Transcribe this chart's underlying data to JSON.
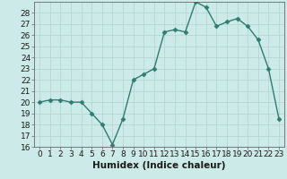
{
  "x": [
    0,
    1,
    2,
    3,
    4,
    5,
    6,
    7,
    8,
    9,
    10,
    11,
    12,
    13,
    14,
    15,
    16,
    17,
    18,
    19,
    20,
    21,
    22,
    23
  ],
  "y": [
    20,
    20.2,
    20.2,
    20,
    20,
    19,
    18,
    16.2,
    18.5,
    22,
    22.5,
    23,
    26.3,
    26.5,
    26.3,
    29,
    28.5,
    26.8,
    27.2,
    27.5,
    26.8,
    25.6,
    23,
    18.5
  ],
  "line_color": "#2e7d6e",
  "marker_color": "#2e7d6e",
  "bg_color": "#cceae7",
  "grid_color": "#b0d4d0",
  "xlabel": "Humidex (Indice chaleur)",
  "xlim": [
    -0.5,
    23.5
  ],
  "ylim": [
    16,
    29
  ],
  "yticks": [
    16,
    17,
    18,
    19,
    20,
    21,
    22,
    23,
    24,
    25,
    26,
    27,
    28
  ],
  "xticks": [
    0,
    1,
    2,
    3,
    4,
    5,
    6,
    7,
    8,
    9,
    10,
    11,
    12,
    13,
    14,
    15,
    16,
    17,
    18,
    19,
    20,
    21,
    22,
    23
  ],
  "xlabel_fontsize": 7.5,
  "tick_fontsize": 6.5,
  "line_width": 1.0,
  "marker_size": 2.5
}
